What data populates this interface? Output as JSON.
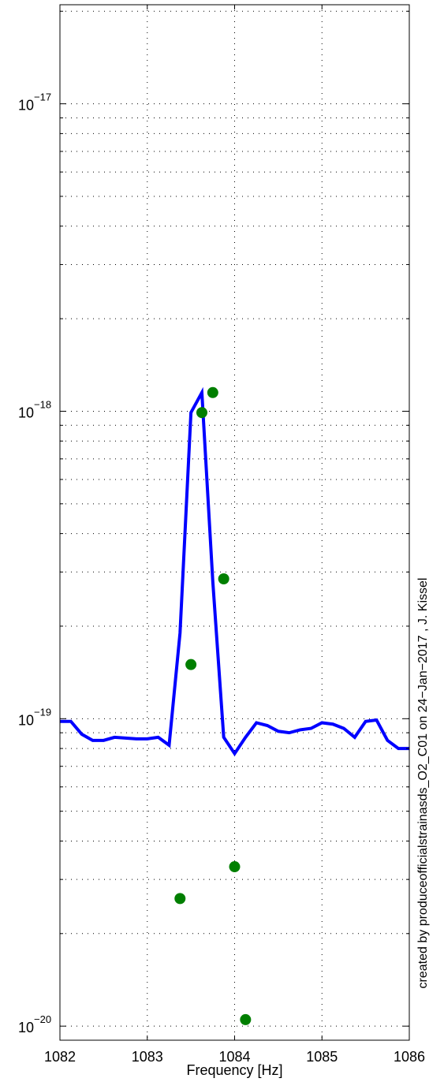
{
  "chart_data": {
    "type": "line",
    "title": "",
    "xlabel": "Frequency [Hz]",
    "ylabel": "",
    "xscale": "linear",
    "yscale": "log",
    "xlim": [
      1082,
      1086
    ],
    "ylim": [
      9e-21,
      2.1e-17
    ],
    "grid": true,
    "x_ticks": [
      1082,
      1083,
      1084,
      1085,
      1086
    ],
    "x_tick_labels": [
      "1082",
      "1083",
      "1084",
      "1085",
      "1086"
    ],
    "y_ticks": [
      {
        "value": 1e-20,
        "base": "10",
        "exponent": "−20"
      },
      {
        "value": 1e-19,
        "base": "10",
        "exponent": "−19"
      },
      {
        "value": 1e-18,
        "base": "10",
        "exponent": "−18"
      },
      {
        "value": 1e-17,
        "base": "10",
        "exponent": "−17"
      }
    ],
    "series": [
      {
        "kind": "line",
        "color": "#0000ff",
        "x": [
          1082.0,
          1082.125,
          1082.25,
          1082.375,
          1082.5,
          1082.625,
          1082.75,
          1082.875,
          1083.0,
          1083.125,
          1083.25,
          1083.375,
          1083.5,
          1083.625,
          1083.75,
          1083.875,
          1084.0,
          1084.125,
          1084.25,
          1084.375,
          1084.5,
          1084.625,
          1084.75,
          1084.875,
          1085.0,
          1085.125,
          1085.25,
          1085.375,
          1085.5,
          1085.625,
          1085.75,
          1085.875,
          1086.0
        ],
        "y": [
          9.8e-20,
          9.8e-20,
          8.9e-20,
          8.5e-20,
          8.5e-20,
          8.7e-20,
          8.65e-20,
          8.6e-20,
          8.6e-20,
          8.7e-20,
          8.2e-20,
          1.9e-19,
          9.9e-19,
          1.15e-18,
          2.8e-19,
          8.7e-20,
          7.7e-20,
          8.7e-20,
          9.7e-20,
          9.5e-20,
          9.1e-20,
          9e-20,
          9.2e-20,
          9.3e-20,
          9.7e-20,
          9.6e-20,
          9.3e-20,
          8.7e-20,
          9.8e-20,
          9.9e-20,
          8.5e-20,
          8e-20,
          8e-20
        ]
      },
      {
        "kind": "scatter",
        "color": "#007f00",
        "x": [
          1083.375,
          1083.5,
          1083.625,
          1083.75,
          1083.875,
          1084.0,
          1084.125
        ],
        "y": [
          2.6e-20,
          1.5e-19,
          9.9e-19,
          1.15e-18,
          2.85e-19,
          3.3e-20,
          1.05e-20
        ]
      }
    ],
    "annotation": "created by produceofficialstrainasds_O2_C01 on 24−Jan−2017 , J. Kissel"
  }
}
